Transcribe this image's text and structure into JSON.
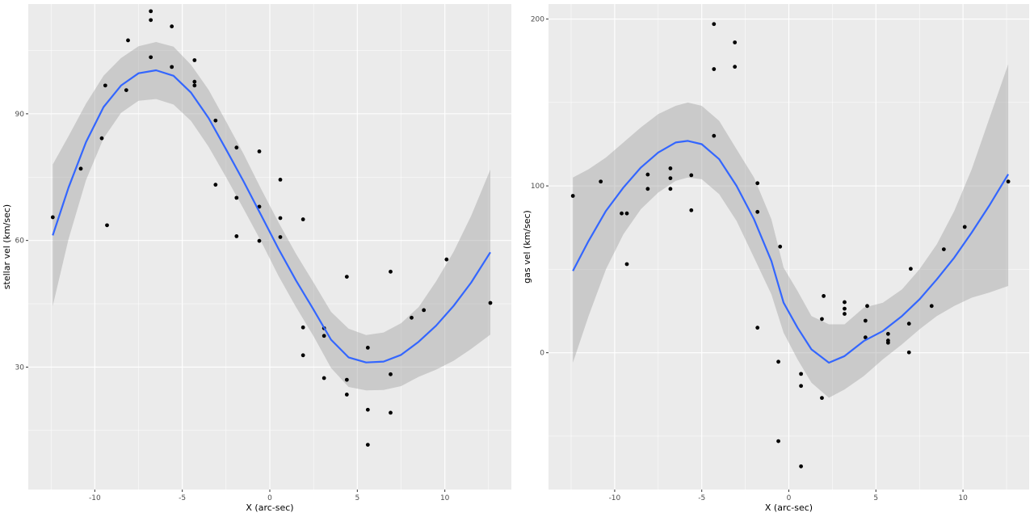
{
  "chart_data": [
    {
      "type": "scatter",
      "title": "",
      "xlabel": "X (arc-sec)",
      "ylabel": "stellar vel (km/sec)",
      "xlim": [
        -13.8,
        13.8
      ],
      "ylim": [
        1.0,
        116.0
      ],
      "x_ticks": [
        -10,
        -5,
        0,
        5,
        10
      ],
      "x_tick_labels": [
        "-10",
        "-5",
        "0",
        "5",
        "10"
      ],
      "y_ticks": [
        30,
        60,
        90
      ],
      "y_tick_labels": [
        "30",
        "60",
        "90"
      ],
      "grid": true,
      "colors": {
        "panel": "#EBEBEB",
        "grid": "#FFFFFF",
        "points": "#000000",
        "smooth": "#3366FF",
        "ribbon": "#999999"
      },
      "points": [
        {
          "x": -12.4,
          "y": 65.5
        },
        {
          "x": -10.8,
          "y": 77.0
        },
        {
          "x": -9.6,
          "y": 84.2
        },
        {
          "x": -9.4,
          "y": 96.7
        },
        {
          "x": -9.3,
          "y": 63.6
        },
        {
          "x": -8.2,
          "y": 95.6
        },
        {
          "x": -8.1,
          "y": 107.4
        },
        {
          "x": -6.8,
          "y": 103.4
        },
        {
          "x": -6.8,
          "y": 112.2
        },
        {
          "x": -6.8,
          "y": 114.3
        },
        {
          "x": -5.6,
          "y": 101.1
        },
        {
          "x": -5.6,
          "y": 110.7
        },
        {
          "x": -4.3,
          "y": 96.7
        },
        {
          "x": -4.3,
          "y": 97.6
        },
        {
          "x": -4.3,
          "y": 102.7
        },
        {
          "x": -3.1,
          "y": 88.4
        },
        {
          "x": -3.1,
          "y": 73.2
        },
        {
          "x": -1.9,
          "y": 82.0
        },
        {
          "x": -1.9,
          "y": 70.1
        },
        {
          "x": -1.9,
          "y": 61.0
        },
        {
          "x": -0.6,
          "y": 81.1
        },
        {
          "x": -0.6,
          "y": 68.0
        },
        {
          "x": -0.6,
          "y": 59.9
        },
        {
          "x": 0.6,
          "y": 74.4
        },
        {
          "x": 0.6,
          "y": 65.3
        },
        {
          "x": 0.6,
          "y": 60.8
        },
        {
          "x": 1.9,
          "y": 65.0
        },
        {
          "x": 1.9,
          "y": 39.4
        },
        {
          "x": 1.9,
          "y": 32.8
        },
        {
          "x": 3.1,
          "y": 39.2
        },
        {
          "x": 3.1,
          "y": 37.4
        },
        {
          "x": 3.1,
          "y": 27.4
        },
        {
          "x": 4.4,
          "y": 51.4
        },
        {
          "x": 4.4,
          "y": 27.0
        },
        {
          "x": 4.4,
          "y": 23.5
        },
        {
          "x": 5.6,
          "y": 34.6
        },
        {
          "x": 5.6,
          "y": 19.9
        },
        {
          "x": 5.6,
          "y": 11.6
        },
        {
          "x": 6.9,
          "y": 52.6
        },
        {
          "x": 6.9,
          "y": 28.3
        },
        {
          "x": 6.9,
          "y": 19.2
        },
        {
          "x": 8.1,
          "y": 41.7
        },
        {
          "x": 8.8,
          "y": 43.5
        },
        {
          "x": 10.1,
          "y": 55.5
        },
        {
          "x": 12.6,
          "y": 45.2
        }
      ],
      "smooth": [
        {
          "x": -12.4,
          "y": 61.2,
          "lo": 44.5,
          "hi": 78.0
        },
        {
          "x": -11.5,
          "y": 72.5,
          "lo": 60.3,
          "hi": 84.7
        },
        {
          "x": -10.5,
          "y": 83.3,
          "lo": 74.3,
          "hi": 92.4
        },
        {
          "x": -9.5,
          "y": 91.6,
          "lo": 84.2,
          "hi": 99.0
        },
        {
          "x": -8.5,
          "y": 96.7,
          "lo": 90.2,
          "hi": 103.2
        },
        {
          "x": -7.5,
          "y": 99.6,
          "lo": 93.1,
          "hi": 106.0
        },
        {
          "x": -6.5,
          "y": 100.3,
          "lo": 93.5,
          "hi": 107.0
        },
        {
          "x": -5.5,
          "y": 99.0,
          "lo": 92.2,
          "hi": 105.9
        },
        {
          "x": -4.5,
          "y": 95.0,
          "lo": 88.3,
          "hi": 101.6
        },
        {
          "x": -3.5,
          "y": 89.0,
          "lo": 82.2,
          "hi": 95.7
        },
        {
          "x": -2.5,
          "y": 81.6,
          "lo": 75.0,
          "hi": 88.2
        },
        {
          "x": -1.5,
          "y": 74.0,
          "lo": 67.5,
          "hi": 80.5
        },
        {
          "x": -0.5,
          "y": 66.0,
          "lo": 59.8,
          "hi": 72.2
        },
        {
          "x": 0.5,
          "y": 58.0,
          "lo": 51.6,
          "hi": 64.3
        },
        {
          "x": 1.5,
          "y": 50.5,
          "lo": 44.2,
          "hi": 56.8
        },
        {
          "x": 2.5,
          "y": 43.6,
          "lo": 37.3,
          "hi": 50.0
        },
        {
          "x": 3.5,
          "y": 36.5,
          "lo": 29.8,
          "hi": 43.1
        },
        {
          "x": 4.5,
          "y": 32.3,
          "lo": 25.3,
          "hi": 39.1
        },
        {
          "x": 5.5,
          "y": 31.1,
          "lo": 24.5,
          "hi": 37.6
        },
        {
          "x": 6.5,
          "y": 31.3,
          "lo": 24.6,
          "hi": 38.2
        },
        {
          "x": 7.5,
          "y": 32.9,
          "lo": 25.5,
          "hi": 40.4
        },
        {
          "x": 8.5,
          "y": 36.0,
          "lo": 27.7,
          "hi": 44.2
        },
        {
          "x": 9.5,
          "y": 39.8,
          "lo": 29.4,
          "hi": 50.3
        },
        {
          "x": 10.5,
          "y": 44.5,
          "lo": 31.5,
          "hi": 57.3
        },
        {
          "x": 11.5,
          "y": 50.0,
          "lo": 34.3,
          "hi": 65.8
        },
        {
          "x": 12.6,
          "y": 57.2,
          "lo": 37.7,
          "hi": 76.8
        }
      ]
    },
    {
      "type": "scatter",
      "title": "",
      "xlabel": "X (arc-sec)",
      "ylabel": "gas vel (km/sec)",
      "xlim": [
        -13.8,
        13.8
      ],
      "ylim": [
        -82.0,
        209.0
      ],
      "x_ticks": [
        -10,
        -5,
        0,
        5,
        10
      ],
      "x_tick_labels": [
        "-10",
        "-5",
        "0",
        "5",
        "10"
      ],
      "y_ticks": [
        0,
        100,
        200
      ],
      "y_tick_labels": [
        "0",
        "100",
        "200"
      ],
      "grid": true,
      "colors": {
        "panel": "#EBEBEB",
        "grid": "#FFFFFF",
        "points": "#000000",
        "smooth": "#3366FF",
        "ribbon": "#999999"
      },
      "points": [
        {
          "x": -12.4,
          "y": 94.0
        },
        {
          "x": -10.8,
          "y": 102.6
        },
        {
          "x": -9.6,
          "y": 83.5
        },
        {
          "x": -9.3,
          "y": 83.5
        },
        {
          "x": -9.3,
          "y": 53.1
        },
        {
          "x": -8.1,
          "y": 98.2
        },
        {
          "x": -8.1,
          "y": 106.8
        },
        {
          "x": -6.8,
          "y": 98.2
        },
        {
          "x": -6.8,
          "y": 104.6
        },
        {
          "x": -6.8,
          "y": 110.5
        },
        {
          "x": -5.6,
          "y": 106.4
        },
        {
          "x": -5.6,
          "y": 85.4
        },
        {
          "x": -4.3,
          "y": 197.0
        },
        {
          "x": -4.3,
          "y": 170.0
        },
        {
          "x": -4.3,
          "y": 130.0
        },
        {
          "x": -3.1,
          "y": 186.0
        },
        {
          "x": -3.1,
          "y": 171.4
        },
        {
          "x": -1.8,
          "y": 101.6
        },
        {
          "x": -1.8,
          "y": 84.4
        },
        {
          "x": -1.8,
          "y": 15.0
        },
        {
          "x": -0.5,
          "y": 63.6
        },
        {
          "x": -0.6,
          "y": -5.4
        },
        {
          "x": -0.6,
          "y": -53.0
        },
        {
          "x": 0.7,
          "y": -12.7
        },
        {
          "x": 0.7,
          "y": -19.9
        },
        {
          "x": 0.7,
          "y": -68.1
        },
        {
          "x": 1.9,
          "y": 20.2
        },
        {
          "x": 1.9,
          "y": -27.1
        },
        {
          "x": 2.0,
          "y": 34.0
        },
        {
          "x": 3.2,
          "y": 30.3
        },
        {
          "x": 3.2,
          "y": 26.4
        },
        {
          "x": 3.2,
          "y": 23.3
        },
        {
          "x": 4.4,
          "y": 19.2
        },
        {
          "x": 4.5,
          "y": 28.0
        },
        {
          "x": 4.4,
          "y": 9.2
        },
        {
          "x": 5.7,
          "y": 11.3
        },
        {
          "x": 5.7,
          "y": 7.3
        },
        {
          "x": 5.7,
          "y": 6.0
        },
        {
          "x": 7.0,
          "y": 50.3
        },
        {
          "x": 6.9,
          "y": 17.4
        },
        {
          "x": 6.9,
          "y": 0.2
        },
        {
          "x": 8.2,
          "y": 28.0
        },
        {
          "x": 8.9,
          "y": 62.0
        },
        {
          "x": 10.1,
          "y": 75.4
        },
        {
          "x": 12.6,
          "y": 102.6
        }
      ],
      "smooth": [
        {
          "x": -12.4,
          "y": 49.0,
          "lo": -6.0,
          "hi": 105.0
        },
        {
          "x": -11.5,
          "y": 67.0,
          "lo": 22.0,
          "hi": 110.0
        },
        {
          "x": -10.5,
          "y": 85.0,
          "lo": 50.0,
          "hi": 117.0
        },
        {
          "x": -9.5,
          "y": 99.0,
          "lo": 71.0,
          "hi": 126.0
        },
        {
          "x": -8.5,
          "y": 111.0,
          "lo": 86.0,
          "hi": 135.0
        },
        {
          "x": -7.5,
          "y": 120.0,
          "lo": 96.0,
          "hi": 143.0
        },
        {
          "x": -6.5,
          "y": 126.0,
          "lo": 103.0,
          "hi": 148.0
        },
        {
          "x": -5.8,
          "y": 127.0,
          "lo": 105.0,
          "hi": 150.0
        },
        {
          "x": -5.0,
          "y": 125.0,
          "lo": 104.0,
          "hi": 148.0
        },
        {
          "x": -4.0,
          "y": 116.0,
          "lo": 95.0,
          "hi": 139.0
        },
        {
          "x": -3.0,
          "y": 100.0,
          "lo": 79.0,
          "hi": 122.0
        },
        {
          "x": -2.0,
          "y": 80.0,
          "lo": 57.0,
          "hi": 105.0
        },
        {
          "x": -1.0,
          "y": 55.0,
          "lo": 35.0,
          "hi": 80.0
        },
        {
          "x": -0.3,
          "y": 30.0,
          "lo": 12.0,
          "hi": 51.0
        },
        {
          "x": 0.5,
          "y": 15.0,
          "lo": -4.0,
          "hi": 37.0
        },
        {
          "x": 1.3,
          "y": 2.0,
          "lo": -18.0,
          "hi": 22.0
        },
        {
          "x": 2.3,
          "y": -6.0,
          "lo": -27.0,
          "hi": 17.0
        },
        {
          "x": 3.2,
          "y": -2.0,
          "lo": -22.0,
          "hi": 17.0
        },
        {
          "x": 4.3,
          "y": 7.0,
          "lo": -14.0,
          "hi": 27.0
        },
        {
          "x": 5.4,
          "y": 13.0,
          "lo": -4.0,
          "hi": 30.0
        },
        {
          "x": 6.5,
          "y": 22.0,
          "lo": 5.0,
          "hi": 38.0
        },
        {
          "x": 7.5,
          "y": 32.0,
          "lo": 14.0,
          "hi": 50.0
        },
        {
          "x": 8.5,
          "y": 44.0,
          "lo": 22.0,
          "hi": 65.0
        },
        {
          "x": 9.5,
          "y": 57.0,
          "lo": 28.0,
          "hi": 85.0
        },
        {
          "x": 10.5,
          "y": 72.0,
          "lo": 33.0,
          "hi": 110.0
        },
        {
          "x": 11.5,
          "y": 88.0,
          "lo": 36.0,
          "hi": 140.0
        },
        {
          "x": 12.6,
          "y": 107.0,
          "lo": 40.0,
          "hi": 173.0
        }
      ]
    }
  ]
}
